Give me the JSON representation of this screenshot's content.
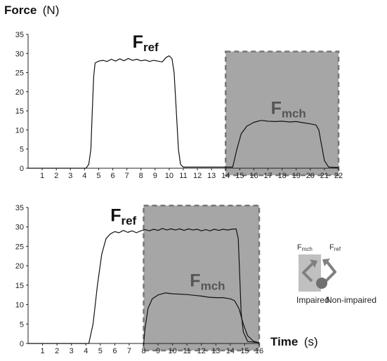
{
  "figure": {
    "y_axis_title": {
      "bold": "Force",
      "unit": "(N)"
    },
    "x_axis_title": {
      "bold": "Time",
      "unit": "(s)"
    }
  },
  "legend": {
    "fmch_label": {
      "main": "F",
      "sub": "mch"
    },
    "fref_label": {
      "main": "F",
      "sub": "ref"
    },
    "impaired_label": "Impaired",
    "non_impaired_label": "Non-impaired",
    "colors": {
      "impaired_box": "#c0c0c0",
      "arrow": "#808080",
      "knob": "#707070"
    }
  },
  "colors": {
    "line": "#111111",
    "shade": "#a6a6a6",
    "shade_border": "#777777",
    "annotation_dark": "#111111",
    "annotation_gray": "#555555"
  },
  "chart_data": [
    {
      "type": "line",
      "title": "",
      "xlabel": "",
      "ylabel": "Force (N)",
      "xlim": [
        0,
        22
      ],
      "ylim": [
        0,
        35
      ],
      "x_ticks": [
        1,
        2,
        3,
        4,
        5,
        6,
        7,
        8,
        9,
        10,
        11,
        12,
        13,
        14,
        15,
        16,
        17,
        18,
        19,
        20,
        21,
        22
      ],
      "y_ticks": [
        0,
        5,
        10,
        15,
        20,
        25,
        30,
        35
      ],
      "shaded_region": {
        "x": [
          14,
          22
        ],
        "y": [
          0,
          30.5
        ]
      },
      "annotations": [
        {
          "main": "F",
          "sub": "ref",
          "x": 7.4,
          "y": 31.5,
          "tone": "dark"
        },
        {
          "main": "F",
          "sub": "mch",
          "x": 17.2,
          "y": 14.2,
          "tone": "gray"
        }
      ],
      "series": [
        {
          "points": [
            [
              0,
              0
            ],
            [
              4.1,
              0
            ],
            [
              4.3,
              1
            ],
            [
              4.45,
              5
            ],
            [
              4.55,
              15
            ],
            [
              4.65,
              24
            ],
            [
              4.75,
              27.5
            ],
            [
              5,
              28
            ],
            [
              5.3,
              28.2
            ],
            [
              5.6,
              27.9
            ],
            [
              5.9,
              28.5
            ],
            [
              6.2,
              28
            ],
            [
              6.5,
              28.6
            ],
            [
              6.8,
              28.1
            ],
            [
              7.1,
              28.7
            ],
            [
              7.4,
              28.2
            ],
            [
              7.7,
              28.5
            ],
            [
              8,
              28.1
            ],
            [
              8.3,
              28.3
            ],
            [
              8.6,
              27.9
            ],
            [
              8.9,
              28.2
            ],
            [
              9.2,
              28
            ],
            [
              9.5,
              27.8
            ],
            [
              9.8,
              29
            ],
            [
              10,
              29.4
            ],
            [
              10.2,
              28.6
            ],
            [
              10.35,
              25
            ],
            [
              10.5,
              15
            ],
            [
              10.65,
              5
            ],
            [
              10.8,
              1
            ],
            [
              11,
              0.3
            ],
            [
              14.5,
              0.3
            ],
            [
              14.8,
              5
            ],
            [
              15.1,
              9
            ],
            [
              15.5,
              11
            ],
            [
              16,
              12
            ],
            [
              16.5,
              12.5
            ],
            [
              17,
              12.3
            ],
            [
              17.5,
              12.2
            ],
            [
              18,
              12.3
            ],
            [
              18.5,
              12.1
            ],
            [
              19,
              12.2
            ],
            [
              19.5,
              11.9
            ],
            [
              20,
              11.6
            ],
            [
              20.4,
              11.3
            ],
            [
              20.6,
              10
            ],
            [
              20.8,
              6
            ],
            [
              21,
              2
            ],
            [
              21.3,
              0.3
            ],
            [
              22,
              0.2
            ]
          ]
        }
      ]
    },
    {
      "type": "line",
      "title": "",
      "xlabel": "Time (s)",
      "ylabel": "",
      "xlim": [
        0,
        16
      ],
      "ylim": [
        0,
        35
      ],
      "x_ticks": [
        1,
        2,
        3,
        4,
        5,
        6,
        7,
        8,
        9,
        10,
        11,
        12,
        13,
        14,
        15,
        16
      ],
      "y_ticks": [
        0,
        5,
        10,
        15,
        20,
        25,
        30,
        35
      ],
      "shaded_region": {
        "x": [
          8,
          16
        ],
        "y": [
          0,
          35.5
        ]
      },
      "annotations": [
        {
          "main": "F",
          "sub": "ref",
          "x": 5.7,
          "y": 31.5,
          "tone": "dark"
        },
        {
          "main": "F",
          "sub": "mch",
          "x": 11.2,
          "y": 14.7,
          "tone": "gray"
        }
      ],
      "series": [
        {
          "points": [
            [
              0,
              0
            ],
            [
              4.2,
              0
            ],
            [
              4.5,
              5
            ],
            [
              4.8,
              15
            ],
            [
              5.1,
              23
            ],
            [
              5.4,
              27
            ],
            [
              5.7,
              28.2
            ],
            [
              6,
              28.8
            ],
            [
              6.3,
              28.5
            ],
            [
              6.6,
              29.1
            ],
            [
              6.9,
              28.6
            ],
            [
              7.2,
              29
            ],
            [
              7.5,
              28.5
            ],
            [
              7.8,
              29
            ],
            [
              8.1,
              29.3
            ],
            [
              8.4,
              29
            ],
            [
              8.7,
              29.4
            ],
            [
              9,
              29.1
            ],
            [
              9.3,
              29.6
            ],
            [
              9.6,
              29.2
            ],
            [
              9.9,
              29.5
            ],
            [
              10.2,
              29.2
            ],
            [
              10.5,
              29.5
            ],
            [
              10.8,
              29.1
            ],
            [
              11.1,
              29.5
            ],
            [
              11.4,
              29.2
            ],
            [
              11.7,
              29.4
            ],
            [
              12,
              29
            ],
            [
              12.3,
              29.3
            ],
            [
              12.6,
              29
            ],
            [
              12.9,
              29.4
            ],
            [
              13.2,
              29.1
            ],
            [
              13.5,
              29.4
            ],
            [
              13.8,
              29.2
            ],
            [
              14.1,
              29.4
            ],
            [
              14.4,
              29.5
            ],
            [
              14.55,
              27
            ],
            [
              14.65,
              18
            ],
            [
              14.75,
              8
            ],
            [
              14.9,
              3
            ],
            [
              15.2,
              0.5
            ],
            [
              16,
              0.2
            ]
          ]
        },
        {
          "points": [
            [
              8,
              0
            ],
            [
              8.1,
              4
            ],
            [
              8.3,
              9
            ],
            [
              8.6,
              11.5
            ],
            [
              9,
              12.5
            ],
            [
              9.5,
              13
            ],
            [
              10,
              12.8
            ],
            [
              10.5,
              12.7
            ],
            [
              11,
              12.6
            ],
            [
              11.5,
              12.4
            ],
            [
              12,
              12.2
            ],
            [
              12.5,
              11.9
            ],
            [
              13,
              11.8
            ],
            [
              13.5,
              11.8
            ],
            [
              14,
              11.5
            ],
            [
              14.3,
              11
            ],
            [
              14.6,
              9
            ],
            [
              14.9,
              5
            ],
            [
              15.2,
              2
            ],
            [
              15.6,
              0.6
            ],
            [
              16,
              0.2
            ]
          ]
        }
      ]
    }
  ]
}
